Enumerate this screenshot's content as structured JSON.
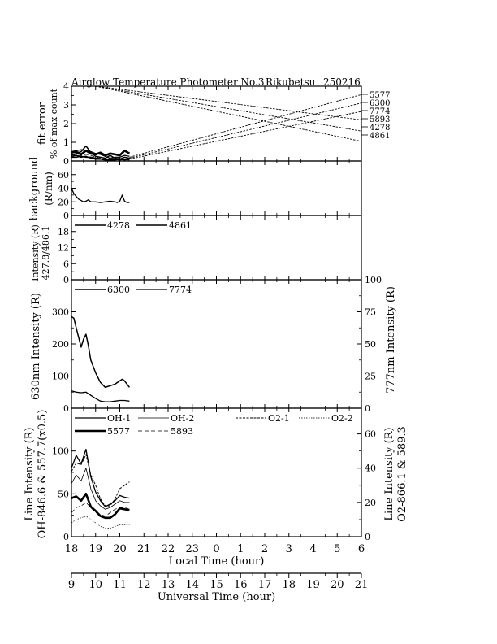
{
  "figure": {
    "title": "Airglow Temperature Photometer No.3",
    "station": "Rikubetsu",
    "date_code": "250216"
  },
  "axes": {
    "local_time": {
      "label": "Local Time (hour)",
      "ticks": [
        "18",
        "19",
        "20",
        "21",
        "22",
        "23",
        "0",
        "1",
        "2",
        "3",
        "4",
        "5",
        "6"
      ]
    },
    "universal_time": {
      "label": "Universal Time (hour)",
      "ticks": [
        "9",
        "10",
        "11",
        "12",
        "13",
        "14",
        "15",
        "16",
        "17",
        "18",
        "19",
        "20",
        "21"
      ]
    }
  },
  "chart_data": [
    {
      "type": "line",
      "panel": "fit-error",
      "ylabel": "fit error",
      "ylabel2": "% of max count",
      "ylim": [
        0,
        4
      ],
      "yticks": [
        "0",
        "1",
        "2",
        "3",
        "4"
      ],
      "xlim_lt_hours": [
        18,
        30
      ],
      "right_labels": [
        "5577",
        "6300",
        "7774",
        "5893",
        "4278",
        "4861"
      ],
      "series": [
        {
          "name": "5577",
          "x": [
            18,
            18.2,
            18.4,
            18.6,
            18.8,
            19.0,
            19.2,
            19.4,
            19.6,
            19.8,
            20.0,
            20.2,
            20.4
          ],
          "y": [
            0.45,
            0.5,
            0.35,
            0.55,
            0.4,
            0.35,
            0.45,
            0.3,
            0.4,
            0.35,
            0.3,
            0.55,
            0.4
          ]
        },
        {
          "name": "6300",
          "x": [
            18,
            18.2,
            18.4,
            18.6,
            18.8,
            19.0,
            19.2,
            19.4,
            19.6,
            19.8,
            20.0,
            20.2,
            20.4
          ],
          "y": [
            0.3,
            0.4,
            0.5,
            0.8,
            0.45,
            0.25,
            0.2,
            0.15,
            0.3,
            0.15,
            0.1,
            0.2,
            0.15
          ]
        },
        {
          "name": "7774",
          "x": [
            18,
            18.2,
            18.4,
            18.6,
            18.8,
            19.0,
            19.2,
            19.4,
            19.6,
            19.8,
            20.0,
            20.2,
            20.4
          ],
          "y": [
            0.5,
            0.55,
            0.6,
            0.55,
            0.5,
            0.4,
            0.35,
            0.25,
            0.15,
            0.2,
            0.2,
            0.3,
            0.25
          ]
        },
        {
          "name": "5893",
          "x": [
            18,
            18.2,
            18.4,
            18.6,
            18.8,
            19.0,
            19.2,
            19.4,
            19.6,
            19.8,
            20.0,
            20.2,
            20.4
          ],
          "y": [
            0.35,
            0.3,
            0.3,
            0.35,
            0.3,
            0.2,
            0.15,
            0.1,
            0.1,
            0.15,
            0.15,
            0.1,
            0.15
          ]
        },
        {
          "name": "4278",
          "x": [
            18,
            18.2,
            18.4,
            18.6,
            18.8,
            19.0,
            19.2,
            19.4,
            19.6,
            19.8,
            20.0,
            20.2,
            20.4
          ],
          "y": [
            0.2,
            0.2,
            0.25,
            0.2,
            0.2,
            0.15,
            0.1,
            0.1,
            0.05,
            0.05,
            0.1,
            0.05,
            0.1
          ]
        },
        {
          "name": "4861",
          "x": [
            18,
            18.2,
            18.4,
            18.6,
            18.8,
            19.0,
            19.2,
            19.4,
            19.6,
            19.8,
            20.0,
            20.2,
            20.4
          ],
          "y": [
            0.25,
            0.3,
            0.2,
            0.25,
            0.15,
            0.1,
            0.1,
            0.05,
            0.05,
            0.1,
            0.05,
            0.1,
            0.05
          ]
        }
      ],
      "guide_lines": [
        {
          "name": "5577",
          "from": [
            20.4,
            0.2
          ],
          "to": [
            30,
            3.55
          ]
        },
        {
          "name": "6300",
          "from": [
            20.4,
            0.15
          ],
          "to": [
            30,
            3.1
          ]
        },
        {
          "name": "7774",
          "from": [
            20.4,
            0.1
          ],
          "to": [
            30,
            2.65
          ]
        },
        {
          "name": "5893",
          "from": [
            19.0,
            4.0
          ],
          "to": [
            30,
            2.2
          ]
        },
        {
          "name": "4278",
          "from": [
            19.0,
            4.0
          ],
          "to": [
            30,
            1.6
          ]
        },
        {
          "name": "4861",
          "from": [
            19.0,
            4.0
          ],
          "to": [
            30,
            1.05
          ]
        }
      ]
    },
    {
      "type": "line",
      "panel": "background",
      "ylabel": "background",
      "ylabel2": "(R/nm)",
      "ylim": [
        0,
        80
      ],
      "yticks": [
        "0",
        "20",
        "40",
        "60"
      ],
      "series": [
        {
          "name": "background",
          "x": [
            18.0,
            18.1,
            18.2,
            18.3,
            18.4,
            18.5,
            18.6,
            18.7,
            18.8,
            19.0,
            19.2,
            19.4,
            19.6,
            19.8,
            19.9,
            20.0,
            20.1,
            20.2,
            20.3,
            20.4
          ],
          "y": [
            40,
            32,
            28,
            24,
            22,
            20,
            21,
            23,
            20,
            20,
            19,
            20,
            21,
            20,
            19,
            21,
            30,
            21,
            19,
            19
          ]
        }
      ]
    },
    {
      "type": "line",
      "panel": "blue-lines",
      "ylabel": "Intensity (R)",
      "ylabel2": "427.8/486.1",
      "ylim": [
        0,
        24
      ],
      "yticks": [
        "0",
        "6",
        "12",
        "18"
      ],
      "legend": [
        "4278",
        "4861"
      ],
      "series": [
        {
          "name": "4278",
          "x": [],
          "y": []
        },
        {
          "name": "4861",
          "x": [],
          "y": []
        }
      ]
    },
    {
      "type": "line",
      "panel": "red-lines",
      "ylabel": "630nm Intensity (R)",
      "y2label": "777nm Intensity (R)",
      "ylim": [
        0,
        400
      ],
      "yticks": [
        "0",
        "100",
        "200",
        "300"
      ],
      "y2lim": [
        0,
        100
      ],
      "y2ticks": [
        "0",
        "25",
        "50",
        "75",
        "100"
      ],
      "legend": [
        "6300",
        "7774"
      ],
      "series": [
        {
          "name": "6300",
          "x": [
            18.0,
            18.1,
            18.2,
            18.3,
            18.4,
            18.5,
            18.6,
            18.7,
            18.8,
            19.0,
            19.2,
            19.4,
            19.6,
            19.8,
            20.0,
            20.1,
            20.2,
            20.3,
            20.4
          ],
          "y": [
            285,
            280,
            250,
            220,
            190,
            215,
            230,
            195,
            150,
            110,
            80,
            65,
            70,
            75,
            85,
            90,
            85,
            75,
            65
          ]
        },
        {
          "name": "7774",
          "x": [
            18.0,
            18.2,
            18.4,
            18.6,
            18.8,
            19.0,
            19.2,
            19.4,
            19.6,
            19.8,
            20.0,
            20.2,
            20.4
          ],
          "y": [
            13.5,
            12.5,
            12.0,
            12.5,
            10.0,
            7.5,
            5.5,
            5.0,
            5.0,
            5.5,
            6.0,
            6.0,
            5.5
          ]
        }
      ]
    },
    {
      "type": "line",
      "panel": "oh-o2-na-lines",
      "ylabel": "Line Intensity (R)",
      "ylabel_sub": "OH-846.6 & 557.7(x0.5)",
      "y2label": "Line Intensity (R)",
      "y2label_sub": "O2-866.1 & 589.3",
      "ylim": [
        0,
        150
      ],
      "yticks": [
        "0",
        "50",
        "100"
      ],
      "y2lim": [
        0,
        75
      ],
      "y2ticks": [
        "0",
        "20",
        "40",
        "60"
      ],
      "legend": [
        "OH-1",
        "OH-2",
        "O2-1",
        "O2-2",
        "5577",
        "5893"
      ],
      "series": [
        {
          "name": "OH-1",
          "x": [
            18.0,
            18.2,
            18.4,
            18.6,
            18.8,
            19.0,
            19.2,
            19.4,
            19.6,
            19.8,
            20.0,
            20.2,
            20.4
          ],
          "y": [
            80,
            95,
            85,
            102,
            70,
            52,
            42,
            35,
            38,
            42,
            48,
            46,
            45
          ]
        },
        {
          "name": "OH-2",
          "x": [
            18.0,
            18.2,
            18.4,
            18.6,
            18.8,
            19.0,
            19.2,
            19.4,
            19.6,
            19.8,
            20.0,
            20.2,
            20.4
          ],
          "y": [
            62,
            72,
            65,
            80,
            56,
            42,
            36,
            32,
            34,
            38,
            42,
            40,
            40
          ]
        },
        {
          "name": "5577",
          "x": [
            18.0,
            18.2,
            18.4,
            18.6,
            18.8,
            19.0,
            19.2,
            19.4,
            19.6,
            19.8,
            20.0,
            20.2,
            20.4
          ],
          "y": [
            45,
            47,
            42,
            50,
            35,
            30,
            24,
            22,
            22,
            26,
            33,
            32,
            31
          ]
        },
        {
          "name": "5893",
          "x": [
            18.0,
            18.2,
            18.4,
            18.6,
            18.8,
            19.0,
            19.2,
            19.4,
            19.6,
            19.8,
            20.0,
            20.2,
            20.4
          ],
          "y": [
            14,
            17,
            18,
            20,
            17,
            14,
            13,
            12,
            14,
            16,
            17,
            17,
            16
          ]
        },
        {
          "name": "O2-1",
          "x": [
            18.0,
            18.2,
            18.4,
            18.6,
            18.8,
            19.0,
            19.2,
            19.4,
            19.6,
            19.8,
            20.0,
            20.2,
            20.4
          ],
          "y": [
            38,
            43,
            42,
            48,
            36,
            30,
            22,
            18,
            18,
            22,
            28,
            30,
            32
          ]
        },
        {
          "name": "O2-2",
          "x": [
            18.0,
            18.2,
            18.4,
            18.6,
            18.8,
            19.0,
            19.2,
            19.4,
            19.6,
            19.8,
            20.0,
            20.2,
            20.4
          ],
          "y": [
            8,
            10,
            11,
            12,
            10,
            8,
            6,
            5,
            5,
            6,
            7,
            7,
            7
          ]
        }
      ]
    }
  ]
}
